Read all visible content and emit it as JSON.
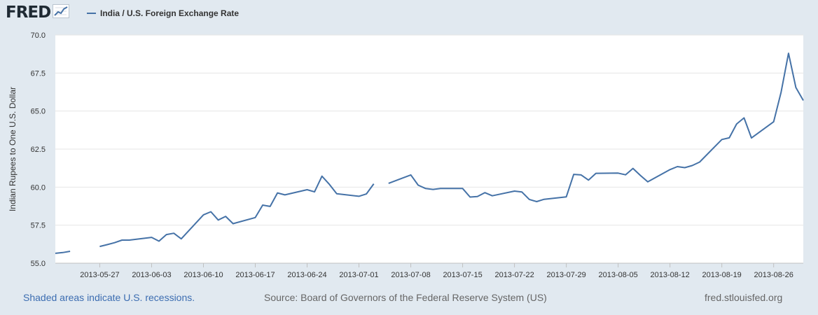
{
  "header": {
    "logo_text": "FRED",
    "legend_label": "India / U.S. Foreign Exchange Rate",
    "series_color": "#4572a7"
  },
  "footer": {
    "recession_note": "Shaded areas indicate U.S. recessions.",
    "source": "Source: Board of Governors of the Federal Reserve System (US)",
    "site": "fred.stlouisfed.org"
  },
  "chart_data": {
    "type": "line",
    "title": "India / U.S. Foreign Exchange Rate",
    "xlabel": "",
    "ylabel": "Indian Rupees to One U.S. Dollar",
    "ylim": [
      55.0,
      70.0
    ],
    "yticks": [
      "55.0",
      "57.5",
      "60.0",
      "62.5",
      "65.0",
      "67.5",
      "70.0"
    ],
    "xlim": [
      "2013-05-21",
      "2013-08-30"
    ],
    "xticks": [
      "2013-05-27",
      "2013-06-03",
      "2013-06-10",
      "2013-06-17",
      "2013-06-24",
      "2013-07-01",
      "2013-07-08",
      "2013-07-15",
      "2013-07-22",
      "2013-07-29",
      "2013-08-05",
      "2013-08-12",
      "2013-08-19",
      "2013-08-26"
    ],
    "grid": true,
    "series": [
      {
        "name": "India / U.S. Foreign Exchange Rate",
        "color": "#4572a7",
        "x": [
          "2013-05-21",
          "2013-05-22",
          "2013-05-23",
          "2013-05-24",
          "2013-05-27",
          "2013-05-28",
          "2013-05-29",
          "2013-05-30",
          "2013-05-31",
          "2013-06-03",
          "2013-06-04",
          "2013-06-05",
          "2013-06-06",
          "2013-06-07",
          "2013-06-10",
          "2013-06-11",
          "2013-06-12",
          "2013-06-13",
          "2013-06-14",
          "2013-06-17",
          "2013-06-18",
          "2013-06-19",
          "2013-06-20",
          "2013-06-21",
          "2013-06-24",
          "2013-06-25",
          "2013-06-26",
          "2013-06-27",
          "2013-06-28",
          "2013-07-01",
          "2013-07-02",
          "2013-07-03",
          "2013-07-04",
          "2013-07-05",
          "2013-07-08",
          "2013-07-09",
          "2013-07-10",
          "2013-07-11",
          "2013-07-12",
          "2013-07-15",
          "2013-07-16",
          "2013-07-17",
          "2013-07-18",
          "2013-07-19",
          "2013-07-22",
          "2013-07-23",
          "2013-07-24",
          "2013-07-25",
          "2013-07-26",
          "2013-07-29",
          "2013-07-30",
          "2013-07-31",
          "2013-08-01",
          "2013-08-02",
          "2013-08-05",
          "2013-08-06",
          "2013-08-07",
          "2013-08-08",
          "2013-08-09",
          "2013-08-12",
          "2013-08-13",
          "2013-08-14",
          "2013-08-15",
          "2013-08-16",
          "2013-08-19",
          "2013-08-20",
          "2013-08-21",
          "2013-08-22",
          "2013-08-23",
          "2013-08-26",
          "2013-08-27",
          "2013-08-28",
          "2013-08-29",
          "2013-08-30"
        ],
        "values": [
          55.65,
          55.7,
          55.78,
          null,
          56.1,
          56.22,
          56.35,
          56.52,
          56.52,
          56.7,
          56.45,
          56.88,
          56.97,
          56.6,
          58.18,
          58.38,
          57.84,
          58.08,
          57.6,
          58.0,
          58.82,
          58.73,
          59.62,
          59.49,
          59.83,
          59.69,
          60.72,
          60.19,
          59.57,
          59.4,
          59.55,
          60.22,
          null,
          60.25,
          60.8,
          60.13,
          59.91,
          59.85,
          59.91,
          59.91,
          59.35,
          59.38,
          59.64,
          59.43,
          59.74,
          59.68,
          59.19,
          59.05,
          59.2,
          59.36,
          60.84,
          60.8,
          60.46,
          60.91,
          60.92,
          60.81,
          61.23,
          60.77,
          60.35,
          61.15,
          61.35,
          61.28,
          61.42,
          61.65,
          63.13,
          63.24,
          64.15,
          64.55,
          63.23,
          64.3,
          66.24,
          68.8,
          66.55,
          65.7
        ]
      }
    ]
  }
}
